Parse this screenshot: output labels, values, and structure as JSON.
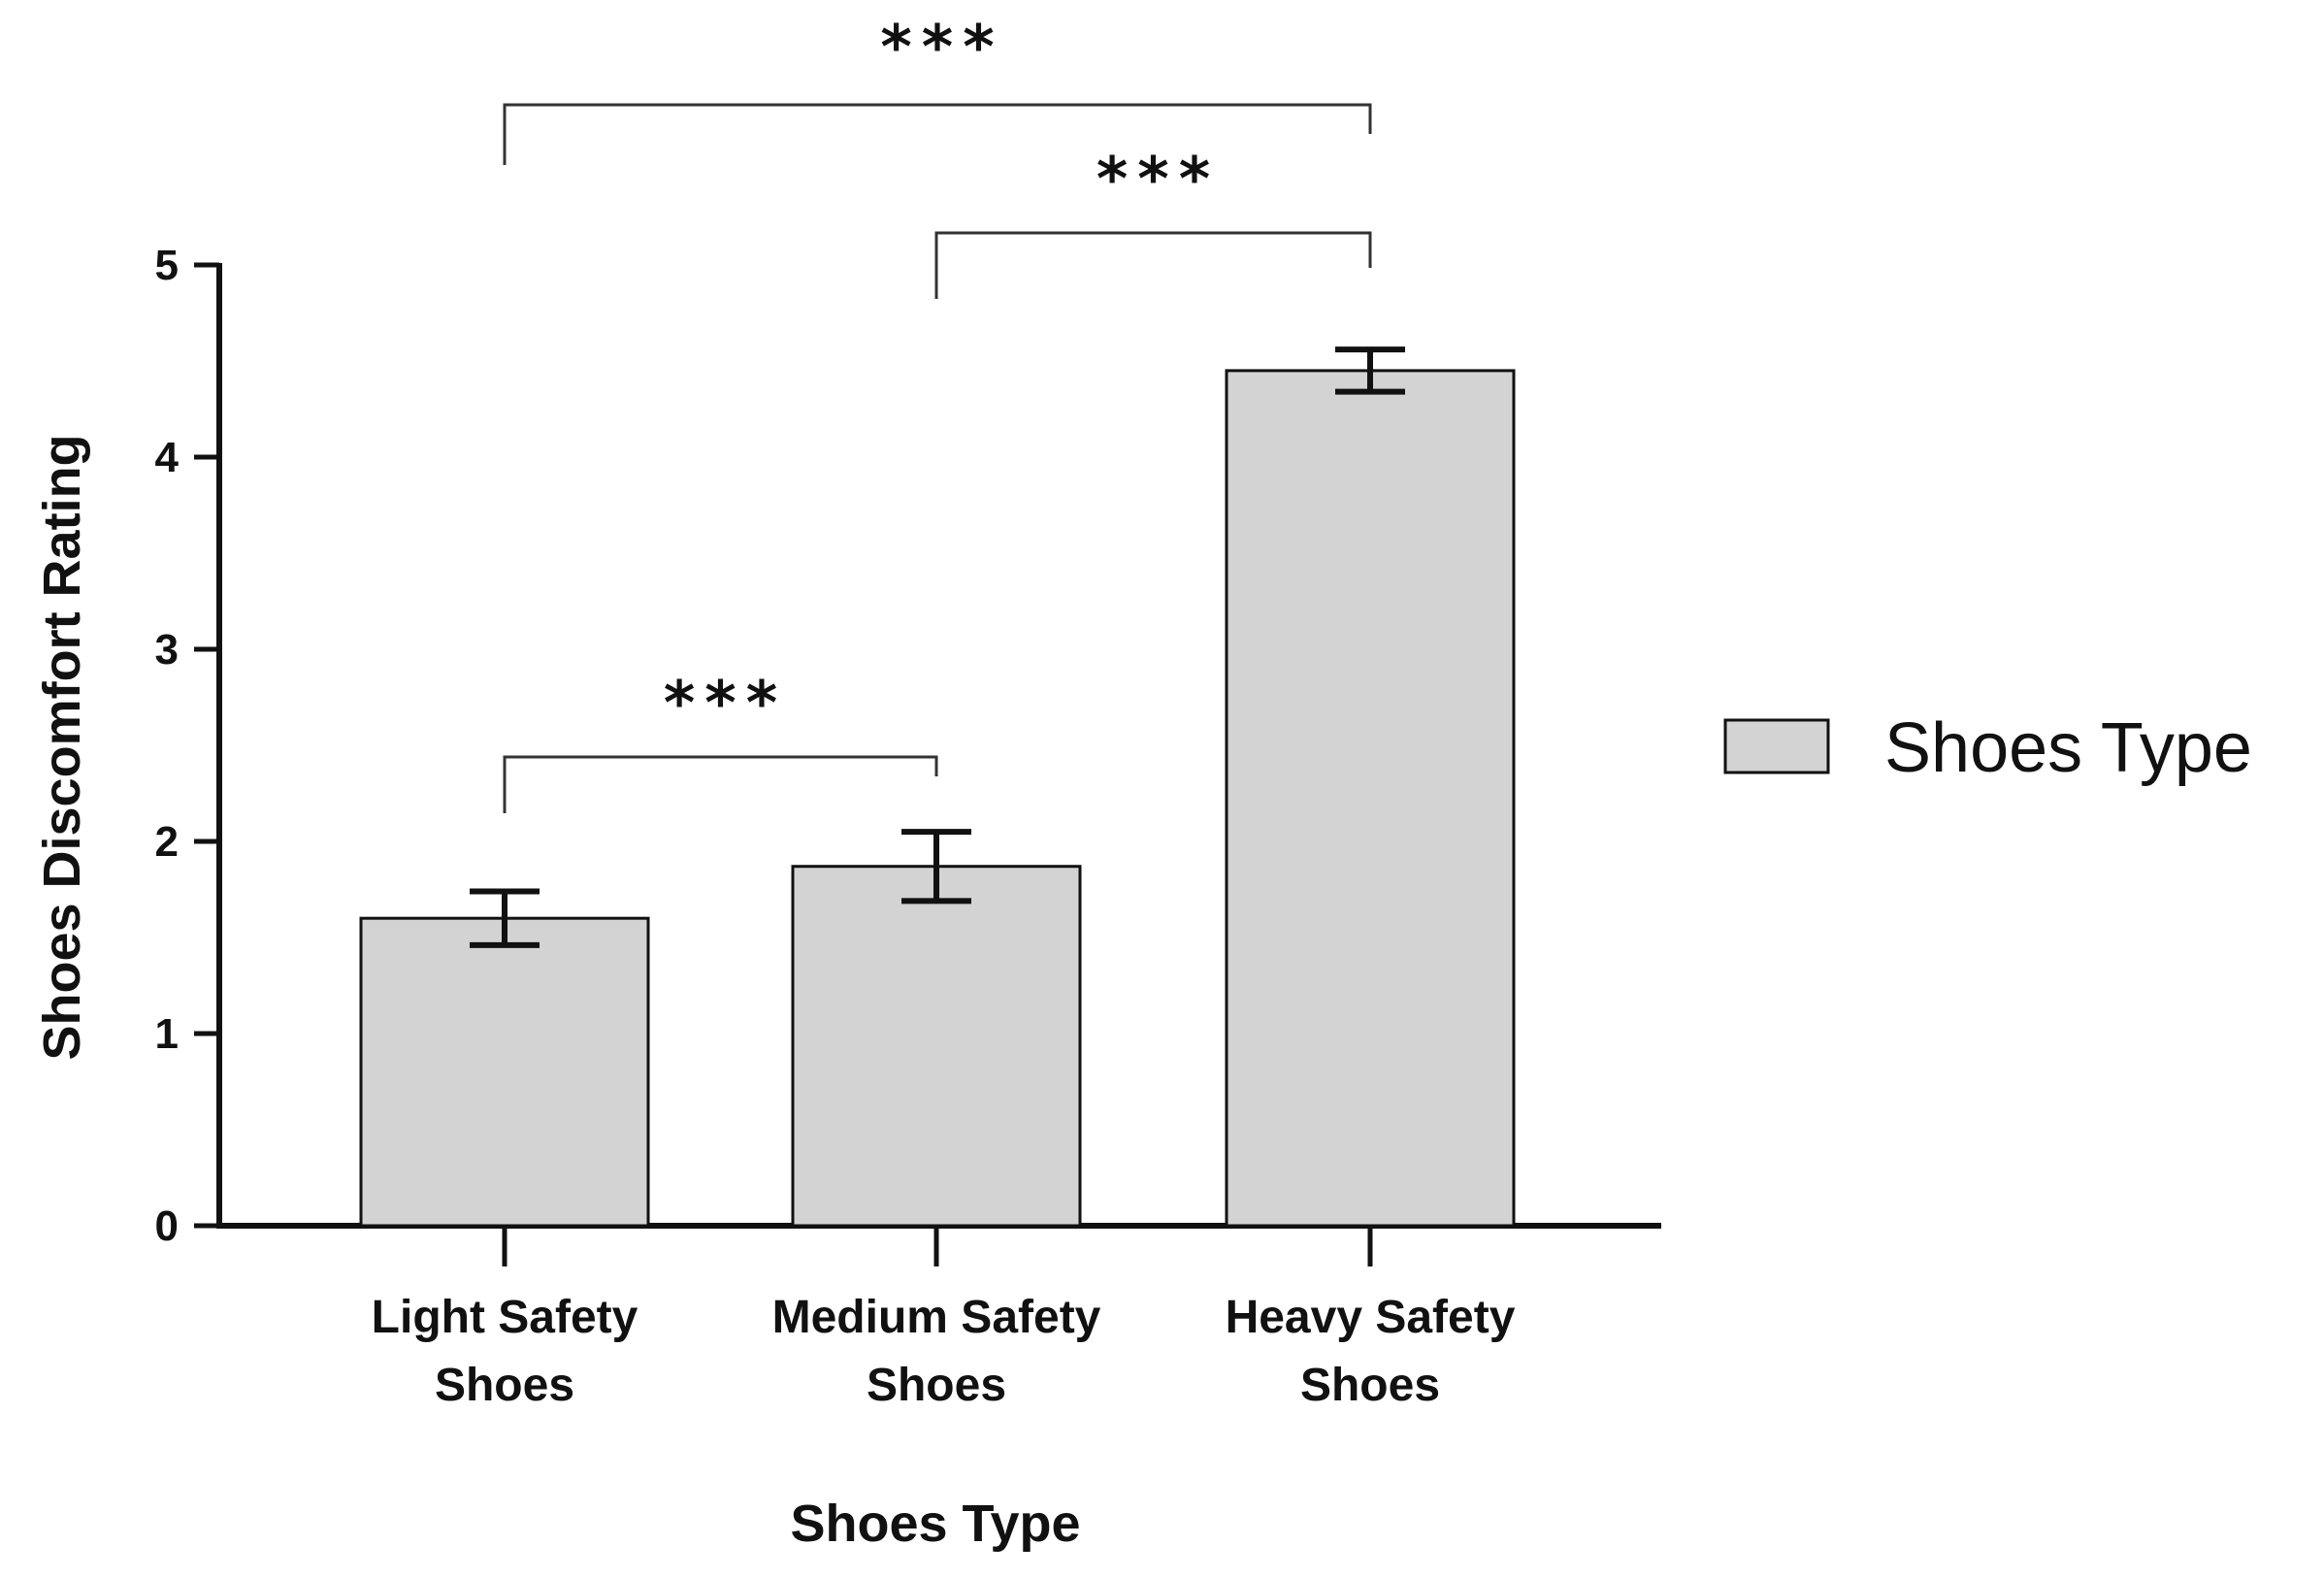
{
  "chart_data": {
    "type": "bar",
    "categories": [
      [
        "Light Safety",
        "Shoes"
      ],
      [
        "Medium Safety",
        "Shoes"
      ],
      [
        "Heavy Safety",
        "Shoes"
      ]
    ],
    "series": [
      {
        "name": "Shoes Type",
        "values": [
          1.6,
          1.87,
          4.45
        ],
        "error": [
          0.14,
          0.18,
          0.11
        ]
      }
    ],
    "xlabel": "Shoes Type",
    "ylabel": "Shoes Discomfort Rating",
    "ylim": [
      0,
      5
    ],
    "yticks": [
      "0",
      "1",
      "2",
      "3",
      "4",
      "5"
    ],
    "grid": false,
    "legend_position": "right",
    "bar_color": "#d3d3d3",
    "line_color": "#111111",
    "significance": [
      {
        "from": 0,
        "to": 1,
        "label": "***"
      },
      {
        "from": 1,
        "to": 2,
        "label": "***"
      },
      {
        "from": 0,
        "to": 2,
        "label": "***"
      }
    ]
  }
}
